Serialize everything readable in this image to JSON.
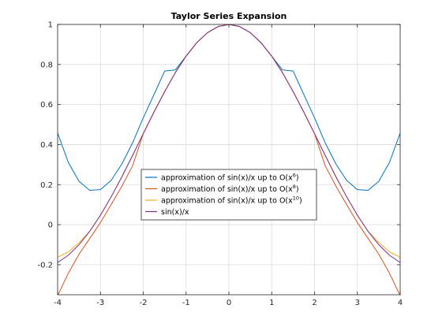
{
  "chart_data": {
    "type": "line",
    "title": "Taylor Series Expansion",
    "xlabel": "",
    "ylabel": "",
    "xlim": [
      -4,
      4
    ],
    "ylim": [
      -0.35,
      1
    ],
    "grid": true,
    "legend_placement": "center",
    "x_ticks": [
      -4,
      -3,
      -2,
      -1,
      0,
      1,
      2,
      3,
      4
    ],
    "x_tick_labels": [
      "-4",
      "-3",
      "-2",
      "-1",
      "0",
      "1",
      "2",
      "3",
      "4"
    ],
    "y_ticks": [
      -0.2,
      0,
      0.2,
      0.4,
      0.6,
      0.8,
      1
    ],
    "y_tick_labels": [
      "-0.2",
      "0",
      "0.2",
      "0.4",
      "0.6",
      "0.8",
      "1"
    ],
    "x": [
      -4,
      -3.75,
      -3.5,
      -3.25,
      -3,
      -2.75,
      -2.5,
      -2.25,
      -2,
      -1.75,
      -1.5,
      -1.25,
      -1,
      -0.75,
      -0.5,
      -0.25,
      0,
      0.25,
      0.5,
      0.75,
      1,
      1.25,
      1.5,
      1.75,
      2,
      2.25,
      2.5,
      2.75,
      3,
      3.25,
      3.5,
      3.75,
      4
    ],
    "series": [
      {
        "name": "approximation of sin(x)/x up to O(x^6)",
        "legend_base": "approximation of sin(x)/x up to O(x",
        "legend_exp": "6",
        "legend_tail": ")",
        "color": "#0072BD",
        "values": [
          0.4578,
          0.3105,
          0.2162,
          0.1716,
          0.175,
          0.2213,
          0.3029,
          0.4083,
          0.5333,
          0.6498,
          0.7672,
          0.7728,
          0.8417,
          0.9093,
          0.9589,
          0.9896,
          1.0,
          0.9896,
          0.9589,
          0.9093,
          0.8417,
          0.7728,
          0.7672,
          0.6498,
          0.5333,
          0.4083,
          0.3029,
          0.2213,
          0.175,
          0.1716,
          0.2162,
          0.3105,
          0.4578
        ]
      },
      {
        "name": "approximation of sin(x)/x up to O(x^8)",
        "legend_base": "approximation of sin(x)/x up to O(x",
        "legend_exp": "8",
        "legend_tail": ")",
        "color": "#D95319",
        "values": [
          -0.3549,
          -0.2424,
          -0.1474,
          -0.0688,
          0.0105,
          0.1,
          0.1922,
          0.2937,
          0.454,
          0.562,
          0.6641,
          0.7602,
          0.8415,
          0.9089,
          0.9589,
          0.9896,
          1.0,
          0.9896,
          0.9589,
          0.9089,
          0.8415,
          0.7602,
          0.6641,
          0.562,
          0.454,
          0.2937,
          0.1922,
          0.1,
          0.0105,
          -0.0688,
          -0.1474,
          -0.2424,
          -0.3549
        ]
      },
      {
        "name": "approximation of sin(x)/x up to O(x^10)",
        "legend_base": "approximation of sin(x)/x up to O(x",
        "legend_exp": "10",
        "legend_tail": ")",
        "color": "#EDB120",
        "values": [
          -0.1627,
          -0.136,
          -0.0898,
          -0.0327,
          0.0485,
          0.1394,
          0.2375,
          0.3451,
          0.4551,
          0.562,
          0.665,
          0.7592,
          0.8415,
          0.9089,
          0.9589,
          0.9896,
          1.0,
          0.9896,
          0.9589,
          0.9089,
          0.8415,
          0.7592,
          0.665,
          0.562,
          0.4551,
          0.3451,
          0.2375,
          0.1394,
          0.0485,
          -0.0327,
          -0.0898,
          -0.136,
          -0.1627
        ]
      },
      {
        "name": "sin(x)/x",
        "legend_base": "sin(x)/x",
        "legend_exp": "",
        "legend_tail": "",
        "color": "#7E2F8E",
        "values": [
          -0.1892,
          -0.1526,
          -0.1002,
          -0.0333,
          0.047,
          0.1388,
          0.2394,
          0.3457,
          0.4546,
          0.5621,
          0.665,
          0.7592,
          0.8415,
          0.9089,
          0.9589,
          0.9896,
          1.0,
          0.9896,
          0.9589,
          0.9089,
          0.8415,
          0.7592,
          0.665,
          0.5621,
          0.4546,
          0.3457,
          0.2394,
          0.1388,
          0.047,
          -0.0333,
          -0.1002,
          -0.1526,
          -0.1892
        ]
      }
    ]
  }
}
